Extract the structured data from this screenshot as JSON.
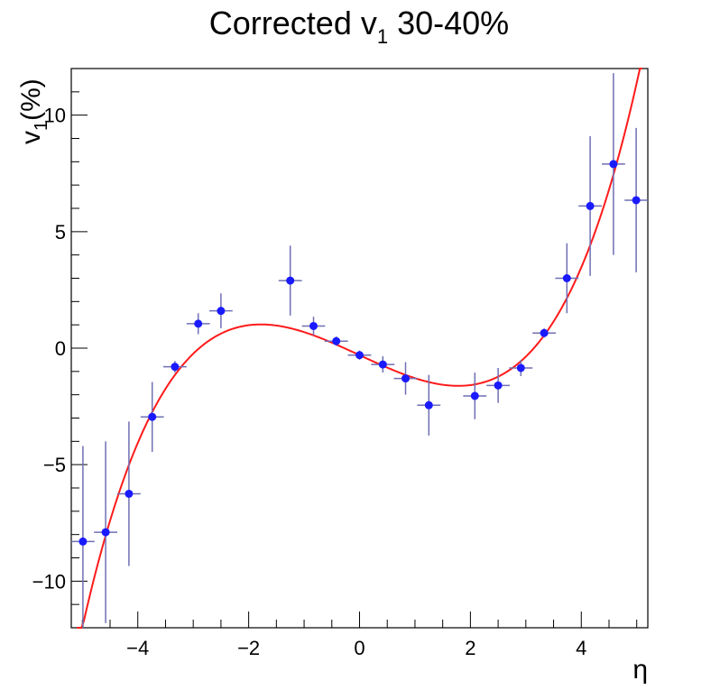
{
  "chart_data": {
    "type": "scatter",
    "title": {
      "main": "Corrected v",
      "subscript": "1",
      "suffix": " 30-40%"
    },
    "xlabel": "η",
    "ylabel": {
      "main": "v",
      "subscript": "1",
      "suffix": "(%)"
    },
    "xlim": [
      -5.2,
      5.2
    ],
    "ylim": [
      -12,
      12
    ],
    "x_ticks": [
      -4,
      -2,
      0,
      2,
      4
    ],
    "x_tick_labels": [
      "−4",
      "−2",
      "0",
      "2",
      "4"
    ],
    "y_ticks": [
      -10,
      -5,
      0,
      5,
      10
    ],
    "y_tick_labels": [
      "−10",
      "−5",
      "0",
      "5",
      "10"
    ],
    "grid": false,
    "legend": "none",
    "colors": {
      "points": "#1a1aff",
      "error_bars": "#6f6fb5",
      "fit_line": "#ff1a1a",
      "frame": "#000000"
    },
    "series": [
      {
        "kind": "points_with_errors",
        "points": [
          {
            "x": -4.99,
            "y": -8.3,
            "xerr": 0.21,
            "yerr": 4.1
          },
          {
            "x": -4.58,
            "y": -7.9,
            "xerr": 0.21,
            "yerr": 3.9
          },
          {
            "x": -4.16,
            "y": -6.25,
            "xerr": 0.21,
            "yerr": 3.1
          },
          {
            "x": -3.74,
            "y": -2.95,
            "xerr": 0.21,
            "yerr": 1.5
          },
          {
            "x": -3.33,
            "y": -0.8,
            "xerr": 0.21,
            "yerr": 0.25
          },
          {
            "x": -2.91,
            "y": 1.05,
            "xerr": 0.21,
            "yerr": 0.45
          },
          {
            "x": -2.5,
            "y": 1.6,
            "xerr": 0.21,
            "yerr": 0.75
          },
          {
            "x": -1.25,
            "y": 2.9,
            "xerr": 0.21,
            "yerr": 1.5
          },
          {
            "x": -0.83,
            "y": 0.95,
            "xerr": 0.21,
            "yerr": 0.4
          },
          {
            "x": -0.42,
            "y": 0.3,
            "xerr": 0.21,
            "yerr": 0.2
          },
          {
            "x": 0.0,
            "y": -0.3,
            "xerr": 0.21,
            "yerr": 0.2
          },
          {
            "x": 0.42,
            "y": -0.7,
            "xerr": 0.21,
            "yerr": 0.35
          },
          {
            "x": 0.83,
            "y": -1.3,
            "xerr": 0.21,
            "yerr": 0.7
          },
          {
            "x": 1.25,
            "y": -2.45,
            "xerr": 0.21,
            "yerr": 1.3
          },
          {
            "x": 2.08,
            "y": -2.05,
            "xerr": 0.21,
            "yerr": 1.0
          },
          {
            "x": 2.5,
            "y": -1.6,
            "xerr": 0.21,
            "yerr": 0.75
          },
          {
            "x": 2.91,
            "y": -0.85,
            "xerr": 0.21,
            "yerr": 0.35
          },
          {
            "x": 3.33,
            "y": 0.65,
            "xerr": 0.21,
            "yerr": 0.2
          },
          {
            "x": 3.74,
            "y": 3.0,
            "xerr": 0.21,
            "yerr": 1.5
          },
          {
            "x": 4.16,
            "y": 6.1,
            "xerr": 0.21,
            "yerr": 3.0
          },
          {
            "x": 4.58,
            "y": 7.9,
            "xerr": 0.21,
            "yerr": 3.9
          },
          {
            "x": 4.99,
            "y": 6.35,
            "xerr": 0.21,
            "yerr": 3.1
          }
        ]
      },
      {
        "kind": "fit_curve",
        "curve": {
          "a1": -1.1,
          "a3": 0.11,
          "a5": 0.0011,
          "a2": 0.0,
          "a0": -0.3,
          "x_range": [
            -5.1,
            5.1
          ]
        }
      }
    ]
  }
}
